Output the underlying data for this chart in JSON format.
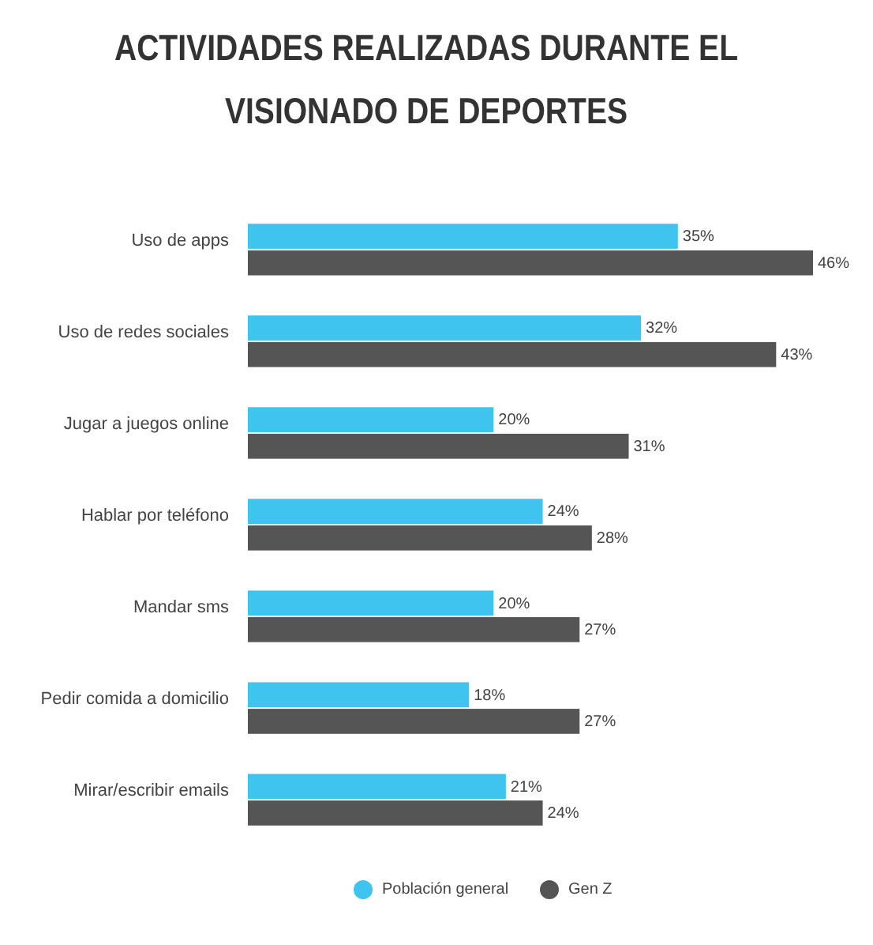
{
  "chart_data": {
    "type": "bar",
    "orientation": "horizontal",
    "title": "ACTIVIDADES REALIZADAS DURANTE EL VISIONADO DE DEPORTES",
    "categories": [
      "Uso de apps",
      "Uso de redes sociales",
      "Jugar a juegos online",
      "Hablar por teléfono",
      "Mandar sms",
      "Pedir comida a domicilio",
      "Mirar/escribir emails"
    ],
    "series": [
      {
        "name": "Población general",
        "color": "#3fc4f0",
        "values": [
          35,
          32,
          20,
          24,
          20,
          18,
          21
        ],
        "value_labels": [
          "35%",
          "32%",
          "20%",
          "24%",
          "20%",
          "18%",
          "21%"
        ]
      },
      {
        "name": "Gen Z",
        "color": "#555555",
        "values": [
          46,
          43,
          31,
          28,
          27,
          27,
          24
        ],
        "value_labels": [
          "46%",
          "43%",
          "31%",
          "28%",
          "27%",
          "27%",
          "24%"
        ]
      }
    ],
    "xlim": [
      0,
      46
    ],
    "legend": "bottom"
  }
}
